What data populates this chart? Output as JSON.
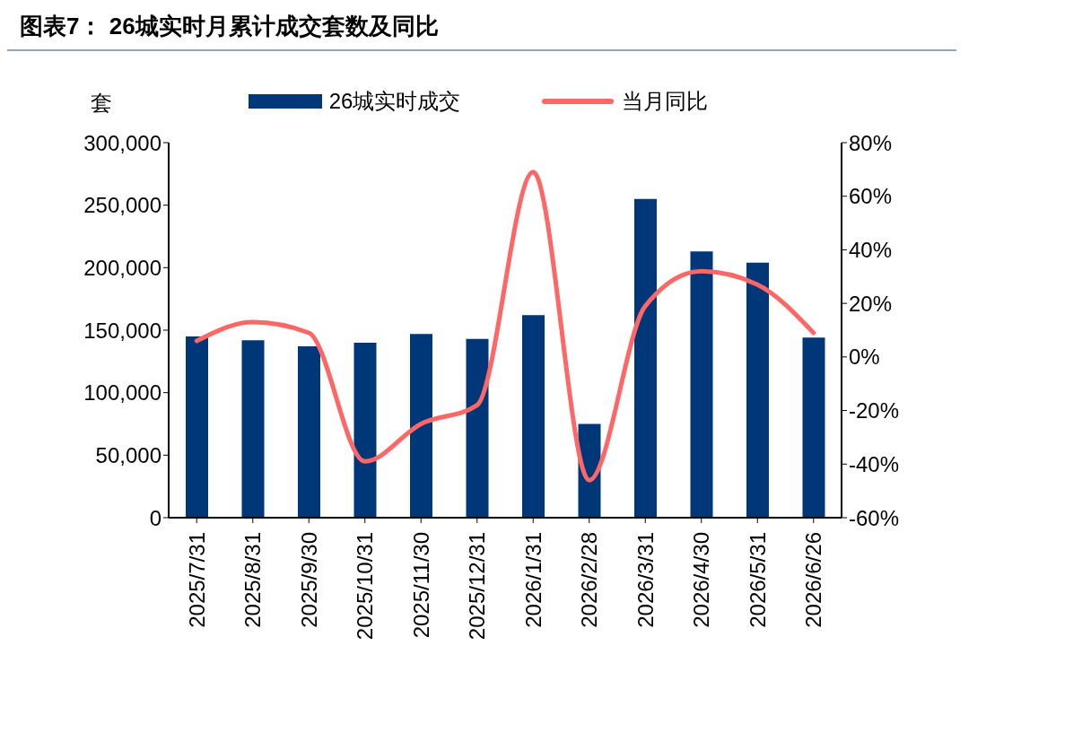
{
  "chart_data": {
    "type": "bar",
    "title": "图表7： 26城实时月累计成交套数及同比",
    "ylabel": "套",
    "categories": [
      "2025/7/31",
      "2025/8/31",
      "2025/9/30",
      "2025/10/31",
      "2025/11/30",
      "2025/12/31",
      "2026/1/31",
      "2026/2/28",
      "2026/3/31",
      "2026/4/30",
      "2026/5/31",
      "2026/6/26"
    ],
    "series": [
      {
        "name": "26城实时成交",
        "color": "#003779",
        "values": [
          145000,
          142000,
          137000,
          140000,
          147000,
          143000,
          162000,
          75000,
          255000,
          213000,
          204000,
          144000
        ]
      },
      {
        "name": "当月同比",
        "type": "line",
        "axis": "y2",
        "color": "#ff6666",
        "values": [
          6,
          13,
          9,
          -39,
          -25,
          -18,
          69,
          -46,
          19,
          32,
          27,
          9
        ]
      }
    ],
    "ylim": [
      0,
      300000
    ],
    "yticks": [
      0,
      {
        "value": 50000,
        "label": "50,000"
      },
      {
        "value": 100000,
        "label": "100,000"
      },
      {
        "value": 150000,
        "label": "150,000"
      },
      {
        "value": 200000,
        "label": "200,000"
      },
      {
        "value": 250000,
        "label": "250,000"
      },
      {
        "value": 300000,
        "label": "300,000"
      }
    ],
    "y2lim": [
      -60,
      80
    ],
    "y2ticks": [
      {
        "value": -60,
        "label": "-60%"
      },
      {
        "value": -40,
        "label": "-40%"
      },
      {
        "value": -20,
        "label": "-20%"
      },
      {
        "value": 0,
        "label": "0%"
      },
      {
        "value": 20,
        "label": "20%"
      },
      {
        "value": 40,
        "label": "40%"
      },
      {
        "value": 60,
        "label": "60%"
      },
      {
        "value": 80,
        "label": "80%"
      }
    ],
    "legend": "top",
    "grid": false,
    "marker": "none",
    "line_style": "solid"
  }
}
